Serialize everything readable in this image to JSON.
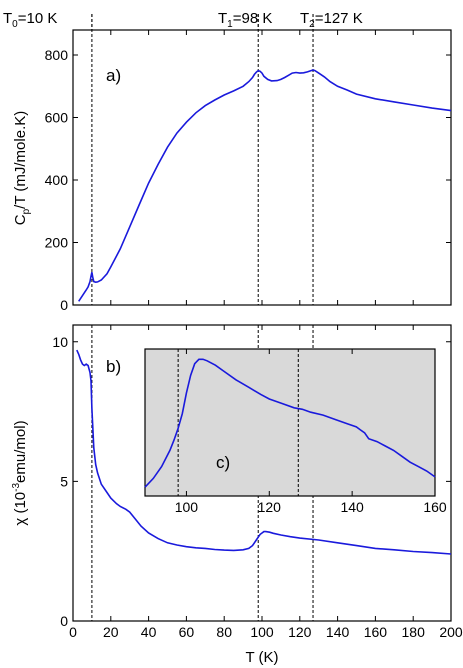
{
  "colors": {
    "curve": "#1a1adc",
    "inset_bg": "#d9d9d9",
    "axis": "#000000"
  },
  "top_labels": {
    "t0": {
      "main": "T",
      "sub": "0",
      "rest": "=10 K"
    },
    "t1": {
      "main": "T",
      "sub": "1",
      "rest": "=98 K"
    },
    "t2": {
      "main": "T",
      "sub": "2",
      "rest": "=127 K"
    }
  },
  "chart_data": [
    {
      "type": "line",
      "panel_label": "a)",
      "ylabel": {
        "main": "C",
        "sub": "p",
        "rest": "/T (mJ/mole.K)"
      },
      "xlim": [
        0,
        200
      ],
      "ylim": [
        0,
        880
      ],
      "yticks": [
        0,
        200,
        400,
        600,
        800
      ],
      "vlines": [
        10,
        98,
        127
      ],
      "x": [
        3,
        5,
        7,
        8,
        9,
        9.5,
        10,
        10.5,
        11,
        12,
        13,
        15,
        18,
        20,
        25,
        30,
        35,
        40,
        45,
        50,
        55,
        60,
        65,
        70,
        75,
        80,
        85,
        90,
        93,
        95,
        96,
        97,
        98,
        99,
        100,
        101,
        103,
        105,
        108,
        110,
        112,
        114,
        116,
        118,
        120,
        122,
        124,
        126,
        127,
        128,
        130,
        133,
        136,
        140,
        145,
        150,
        160,
        170,
        180,
        190,
        200
      ],
      "y": [
        12,
        30,
        48,
        58,
        75,
        92,
        105,
        88,
        75,
        73,
        74,
        80,
        100,
        122,
        180,
        250,
        320,
        390,
        450,
        505,
        550,
        585,
        615,
        638,
        656,
        672,
        685,
        700,
        715,
        728,
        738,
        745,
        750,
        748,
        742,
        732,
        722,
        717,
        718,
        722,
        728,
        735,
        742,
        744,
        742,
        743,
        746,
        750,
        752,
        750,
        742,
        730,
        715,
        700,
        688,
        675,
        660,
        650,
        640,
        630,
        622
      ]
    },
    {
      "type": "line",
      "panel_label": "b)",
      "ylabel": {
        "main": "χ (10",
        "sup": "-3",
        "rest": "emu/mol)"
      },
      "xlabel": "T (K)",
      "xlim": [
        0,
        200
      ],
      "ylim": [
        0,
        10.6
      ],
      "xticks": [
        0,
        20,
        40,
        60,
        80,
        100,
        120,
        140,
        160,
        180,
        200
      ],
      "yticks": [
        0,
        5,
        10
      ],
      "vlines": [
        10,
        98,
        127
      ],
      "x": [
        2,
        3,
        4,
        5,
        6,
        7,
        8,
        9,
        9.5,
        10,
        11,
        12,
        13,
        15,
        18,
        20,
        23,
        25,
        28,
        30,
        33,
        36,
        40,
        45,
        50,
        55,
        60,
        65,
        70,
        75,
        80,
        85,
        90,
        93,
        95,
        96,
        97,
        98,
        99,
        100,
        101,
        102,
        104,
        106,
        110,
        115,
        120,
        130,
        140,
        150,
        160,
        170,
        180,
        190,
        200
      ],
      "y": [
        9.7,
        9.55,
        9.35,
        9.2,
        9.15,
        9.2,
        9.15,
        8.9,
        8.6,
        7.6,
        6.2,
        5.6,
        5.3,
        4.9,
        4.6,
        4.4,
        4.2,
        4.1,
        4.0,
        3.9,
        3.65,
        3.4,
        3.15,
        2.95,
        2.8,
        2.72,
        2.66,
        2.62,
        2.6,
        2.56,
        2.54,
        2.53,
        2.55,
        2.6,
        2.7,
        2.8,
        2.9,
        3.0,
        3.1,
        3.15,
        3.2,
        3.2,
        3.18,
        3.14,
        3.08,
        3.02,
        2.97,
        2.9,
        2.8,
        2.7,
        2.6,
        2.55,
        2.49,
        2.45,
        2.4
      ]
    },
    {
      "type": "line",
      "panel_label": "c)",
      "xlim": [
        90,
        160
      ],
      "ylim": [
        0,
        1
      ],
      "xticks": [
        100,
        120,
        140,
        160
      ],
      "vlines": [
        98,
        127
      ],
      "x": [
        90,
        92,
        94,
        96,
        97,
        98,
        99,
        100,
        101,
        102,
        103,
        104,
        105,
        107,
        109,
        112,
        115,
        118,
        120,
        123,
        126,
        128,
        130,
        133,
        136,
        139,
        141,
        142,
        143,
        144,
        146,
        148,
        150,
        152,
        154,
        156,
        158,
        160
      ],
      "y": [
        0.06,
        0.12,
        0.2,
        0.31,
        0.38,
        0.46,
        0.56,
        0.7,
        0.82,
        0.9,
        0.93,
        0.93,
        0.92,
        0.89,
        0.85,
        0.79,
        0.74,
        0.69,
        0.66,
        0.63,
        0.6,
        0.59,
        0.57,
        0.55,
        0.52,
        0.49,
        0.47,
        0.45,
        0.43,
        0.39,
        0.37,
        0.34,
        0.31,
        0.27,
        0.23,
        0.2,
        0.17,
        0.13
      ]
    }
  ]
}
